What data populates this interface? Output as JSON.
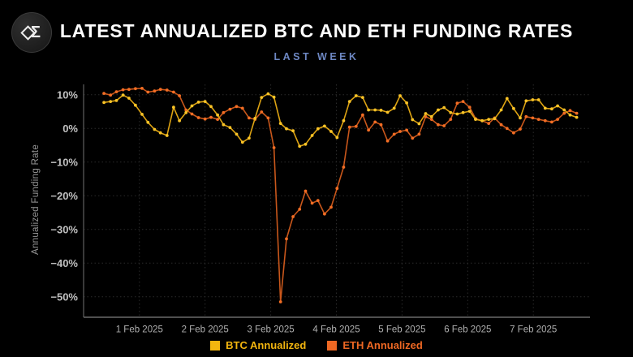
{
  "header": {
    "title": "LATEST ANNUALIZED BTC AND ETH FUNDING RATES",
    "subtitle": "LAST WEEK",
    "logo_glyph": "Σ"
  },
  "colors": {
    "background": "#000000",
    "title_text": "#ffffff",
    "subtitle_text": "#6d87c2",
    "axis_line": "#5f5f5f",
    "grid_line": "#2a2a2a",
    "y_tick_text": "#c0c0c0",
    "x_tick_text": "#b0b0b0",
    "btc_yellow": "#F2B50F",
    "eth_orange": "#EE6823"
  },
  "chart_data": {
    "type": "line",
    "title": "LATEST ANNUALIZED BTC AND ETH FUNDING RATES",
    "subtitle": "LAST WEEK",
    "xlabel": "",
    "ylabel": "Annualized Funding Rate",
    "x_unit": "days, 1.0 = 1 Feb 2025",
    "xlim": [
      0.15,
      7.87
    ],
    "ylim": [
      -56,
      13
    ],
    "grid": "dotted",
    "legend_position": "bottom",
    "y_ticks": [
      {
        "value": 10,
        "label": "10%"
      },
      {
        "value": 0,
        "label": "0%"
      },
      {
        "value": -10,
        "label": "−10%"
      },
      {
        "value": -20,
        "label": "−20%"
      },
      {
        "value": -30,
        "label": "−30%"
      },
      {
        "value": -40,
        "label": "−40%"
      },
      {
        "value": -50,
        "label": "−50%"
      }
    ],
    "x_ticks": [
      {
        "value": 1,
        "label": "1 Feb 2025"
      },
      {
        "value": 2,
        "label": "2 Feb 2025"
      },
      {
        "value": 3,
        "label": "3 Feb 2025"
      },
      {
        "value": 4,
        "label": "4 Feb 2025"
      },
      {
        "value": 5,
        "label": "5 Feb 2025"
      },
      {
        "value": 6,
        "label": "6 Feb 2025"
      },
      {
        "value": 7,
        "label": "7 Feb 2025"
      }
    ],
    "x": [
      0.46,
      0.56,
      0.65,
      0.75,
      0.84,
      0.94,
      1.04,
      1.13,
      1.23,
      1.32,
      1.42,
      1.52,
      1.61,
      1.71,
      1.8,
      1.9,
      2.0,
      2.09,
      2.19,
      2.28,
      2.38,
      2.48,
      2.57,
      2.67,
      2.76,
      2.86,
      2.96,
      3.05,
      3.15,
      3.24,
      3.34,
      3.44,
      3.53,
      3.63,
      3.72,
      3.82,
      3.92,
      4.01,
      4.11,
      4.2,
      4.3,
      4.4,
      4.49,
      4.59,
      4.68,
      4.78,
      4.88,
      4.97,
      5.07,
      5.16,
      5.26,
      5.36,
      5.45,
      5.55,
      5.64,
      5.74,
      5.84,
      5.93,
      6.03,
      6.12,
      6.22,
      6.32,
      6.41,
      6.51,
      6.6,
      6.7,
      6.8,
      6.89,
      6.99,
      7.08,
      7.18,
      7.28,
      7.37,
      7.47,
      7.56,
      7.66
    ],
    "series": [
      {
        "name": "ETH Annualized",
        "line_color": "#C9571B",
        "marker_color": "#F26D24",
        "legend_color": "#EE6823",
        "values": [
          10.4,
          9.9,
          10.9,
          11.5,
          11.6,
          11.8,
          11.9,
          10.8,
          11.1,
          11.6,
          11.4,
          10.8,
          9.7,
          5.5,
          4.3,
          3.2,
          2.8,
          3.3,
          2.7,
          4.7,
          5.7,
          6.5,
          6.0,
          3.1,
          2.7,
          4.9,
          3.1,
          -5.7,
          -51.5,
          -32.8,
          -26.2,
          -24.0,
          -18.6,
          -22.2,
          -21.4,
          -25.4,
          -23.4,
          -17.8,
          -11.5,
          0.4,
          0.6,
          4.0,
          -0.5,
          1.9,
          1.1,
          -3.7,
          -1.7,
          -0.9,
          -0.5,
          -2.9,
          -1.7,
          3.5,
          2.7,
          1.1,
          0.8,
          2.7,
          7.5,
          8.0,
          6.3,
          2.9,
          2.3,
          1.5,
          3.1,
          1.1,
          0.0,
          -1.3,
          -0.2,
          3.5,
          3.1,
          2.7,
          2.3,
          1.9,
          2.7,
          4.5,
          5.3,
          4.5
        ]
      },
      {
        "name": "BTC Annualized",
        "line_color": "#DDA313",
        "marker_color": "#F9C327",
        "legend_color": "#F2B50F",
        "values": [
          7.7,
          8.0,
          8.3,
          9.9,
          9.0,
          6.9,
          4.2,
          1.8,
          -0.3,
          -1.3,
          -2.1,
          6.3,
          2.3,
          4.7,
          6.7,
          7.8,
          8.0,
          6.5,
          4.0,
          1.1,
          0.3,
          -1.7,
          -4.1,
          -2.9,
          3.0,
          9.2,
          10.3,
          9.3,
          1.5,
          -0.1,
          -0.7,
          -5.3,
          -4.7,
          -2.1,
          -0.1,
          0.7,
          -0.9,
          -2.7,
          2.3,
          8.0,
          9.7,
          9.2,
          5.5,
          5.5,
          5.4,
          4.8,
          6.0,
          9.7,
          7.6,
          2.6,
          1.4,
          4.4,
          3.5,
          5.5,
          6.2,
          4.7,
          4.3,
          4.7,
          5.1,
          2.7,
          2.3,
          2.7,
          2.9,
          5.5,
          8.9,
          5.9,
          3.1,
          8.2,
          8.5,
          8.5,
          6.0,
          5.8,
          6.7,
          5.5,
          4.0,
          3.3
        ]
      }
    ],
    "legend_order": [
      "BTC Annualized",
      "ETH Annualized"
    ]
  }
}
